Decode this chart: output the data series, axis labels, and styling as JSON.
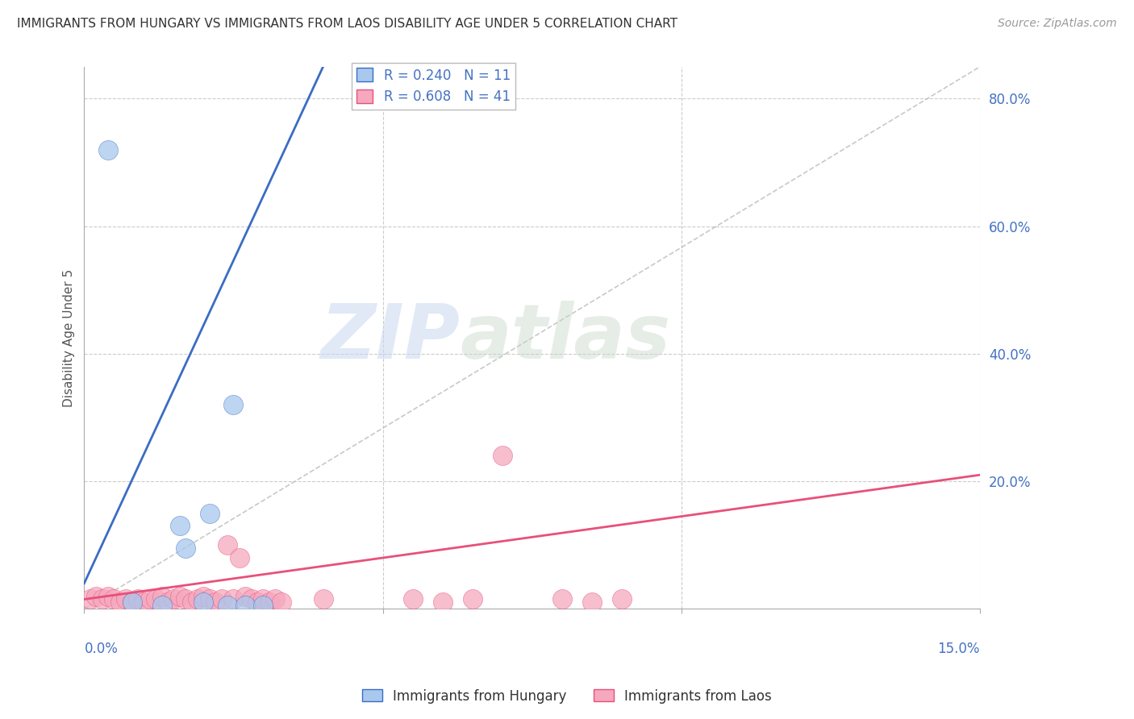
{
  "title": "IMMIGRANTS FROM HUNGARY VS IMMIGRANTS FROM LAOS DISABILITY AGE UNDER 5 CORRELATION CHART",
  "source": "Source: ZipAtlas.com",
  "ylabel": "Disability Age Under 5",
  "xlim": [
    0.0,
    0.15
  ],
  "ylim": [
    0.0,
    0.85
  ],
  "ytick_vals": [
    0.0,
    0.2,
    0.4,
    0.6,
    0.8
  ],
  "ytick_labels": [
    "",
    "20.0%",
    "40.0%",
    "60.0%",
    "80.0%"
  ],
  "xtick_labels": [
    "0.0%",
    "15.0%"
  ],
  "legend_hungary": "R = 0.240   N = 11",
  "legend_laos": "R = 0.608   N = 41",
  "hungary_color": "#A8C8EE",
  "laos_color": "#F5A8BE",
  "hungary_line_color": "#3B6CC4",
  "laos_line_color": "#E8507A",
  "ref_line_color": "#BBBBBB",
  "watermark_zip": "ZIP",
  "watermark_atlas": "atlas",
  "hungary_x": [
    0.004,
    0.008,
    0.013,
    0.016,
    0.017,
    0.02,
    0.021,
    0.024,
    0.025,
    0.027,
    0.03
  ],
  "hungary_y": [
    0.72,
    0.01,
    0.005,
    0.13,
    0.095,
    0.01,
    0.15,
    0.005,
    0.32,
    0.005,
    0.005
  ],
  "laos_x": [
    0.001,
    0.002,
    0.003,
    0.004,
    0.005,
    0.006,
    0.007,
    0.008,
    0.009,
    0.01,
    0.011,
    0.012,
    0.013,
    0.014,
    0.015,
    0.016,
    0.017,
    0.018,
    0.019,
    0.02,
    0.021,
    0.022,
    0.023,
    0.024,
    0.025,
    0.026,
    0.027,
    0.028,
    0.029,
    0.03,
    0.031,
    0.032,
    0.033,
    0.04,
    0.055,
    0.06,
    0.065,
    0.07,
    0.08,
    0.085,
    0.09
  ],
  "laos_y": [
    0.015,
    0.02,
    0.015,
    0.02,
    0.015,
    0.01,
    0.015,
    0.01,
    0.015,
    0.01,
    0.015,
    0.015,
    0.02,
    0.01,
    0.015,
    0.02,
    0.015,
    0.01,
    0.015,
    0.02,
    0.015,
    0.01,
    0.015,
    0.1,
    0.015,
    0.08,
    0.02,
    0.015,
    0.01,
    0.015,
    0.01,
    0.015,
    0.01,
    0.015,
    0.015,
    0.01,
    0.015,
    0.24,
    0.015,
    0.01,
    0.015
  ],
  "hungary_line_x0": 0.0,
  "hungary_line_y0": 0.04,
  "hungary_line_x1": 0.04,
  "hungary_line_y1": 0.85,
  "laos_line_x0": 0.0,
  "laos_line_y0": 0.015,
  "laos_line_x1": 0.15,
  "laos_line_y1": 0.21,
  "ref_line_x0": 0.0,
  "ref_line_y0": 0.0,
  "ref_line_x1": 0.15,
  "ref_line_y1": 0.85
}
